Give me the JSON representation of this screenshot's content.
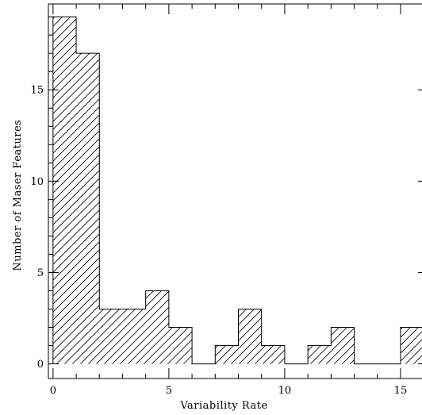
{
  "chart_data": {
    "type": "bar",
    "subtype": "histogram",
    "title": "",
    "xlabel": "Variability Rate",
    "ylabel": "Number of Maser Features",
    "xlim": [
      -0.2,
      16.2
    ],
    "ylim": [
      -0.8,
      19.7
    ],
    "xticks": [
      0,
      5,
      10,
      15
    ],
    "yticks": [
      0,
      5,
      10,
      15
    ],
    "bin_width": 1,
    "bin_edges": [
      0,
      1,
      2,
      3,
      4,
      5,
      6,
      7,
      8,
      9,
      10,
      11,
      12,
      13,
      14,
      15,
      16
    ],
    "values": [
      19,
      17,
      3,
      3,
      4,
      2,
      0,
      1,
      3,
      1,
      0,
      1,
      2,
      0,
      0,
      2
    ],
    "fill": "diagonal-hatch",
    "grid": false,
    "legend": "none"
  }
}
